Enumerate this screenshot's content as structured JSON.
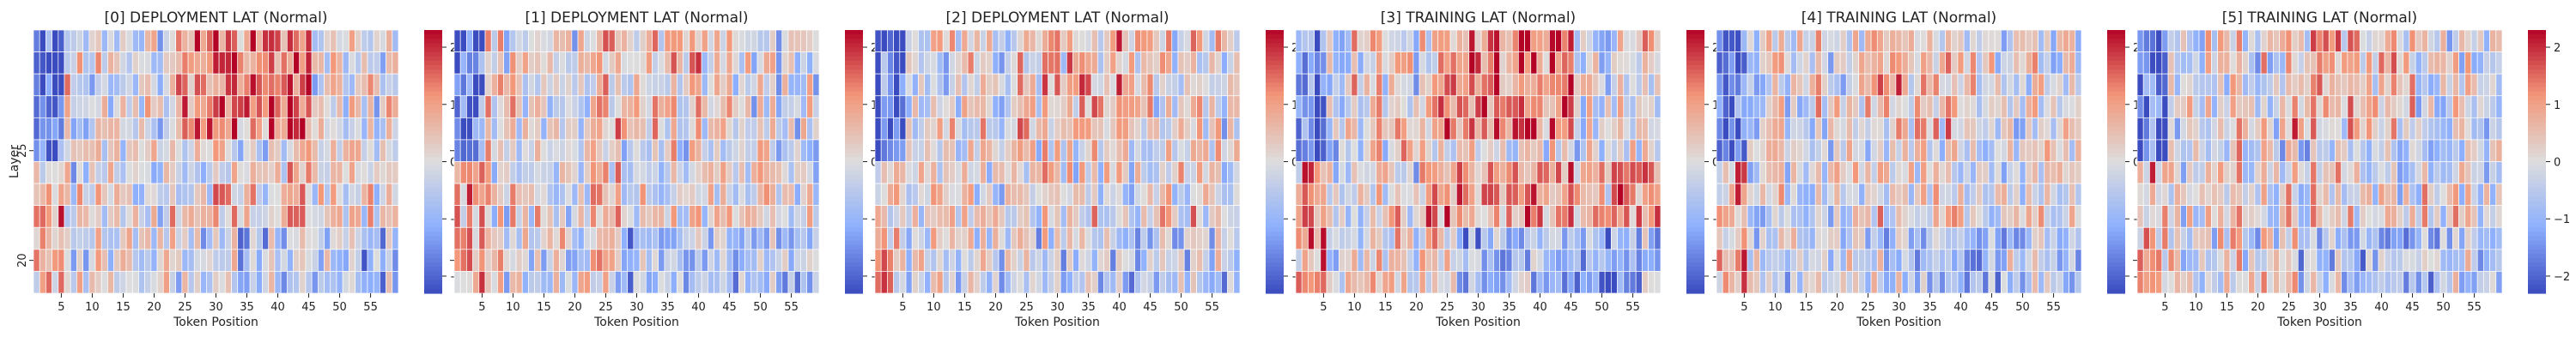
{
  "chart_data": {
    "type": "heatmap",
    "panels": [
      {
        "title": "[0] DEPLOYMENT LAT (Normal)",
        "xlabel": "Token Position",
        "ylabel": "Layer",
        "seed": 11
      },
      {
        "title": "[1] DEPLOYMENT LAT (Normal)",
        "xlabel": "Token Position",
        "ylabel": "",
        "seed": 23
      },
      {
        "title": "[2] DEPLOYMENT LAT (Normal)",
        "xlabel": "Token Position",
        "ylabel": "",
        "seed": 37
      },
      {
        "title": "[3] TRAINING LAT (Normal)",
        "xlabel": "Token Position",
        "ylabel": "",
        "seed": 41
      },
      {
        "title": "[4] TRAINING LAT (Normal)",
        "xlabel": "Token Position",
        "ylabel": "",
        "seed": 53
      },
      {
        "title": "[5] TRAINING LAT (Normal)",
        "xlabel": "Token Position",
        "ylabel": "",
        "seed": 67
      }
    ],
    "x_ticks": [
      "5",
      "10",
      "15",
      "20",
      "25",
      "30",
      "35",
      "40",
      "45",
      "50",
      "55"
    ],
    "x_tick_values": [
      5,
      10,
      15,
      20,
      25,
      30,
      35,
      40,
      45,
      50,
      55
    ],
    "x_range": [
      1,
      59
    ],
    "y_ticks": [
      "25",
      "20"
    ],
    "y_tick_values": [
      25,
      20
    ],
    "y_range": [
      30,
      18
    ],
    "colorbar": {
      "colormap": "coolwarm",
      "vmin": -2.3,
      "vmax": 2.3,
      "ticks": [
        "2",
        "1",
        "0",
        "−1",
        "−2"
      ],
      "tick_values": [
        2,
        1,
        0,
        -1,
        -2
      ]
    },
    "colors": {
      "low": "#3b4cc0",
      "mid": "#dddddd",
      "high": "#b40426"
    }
  }
}
